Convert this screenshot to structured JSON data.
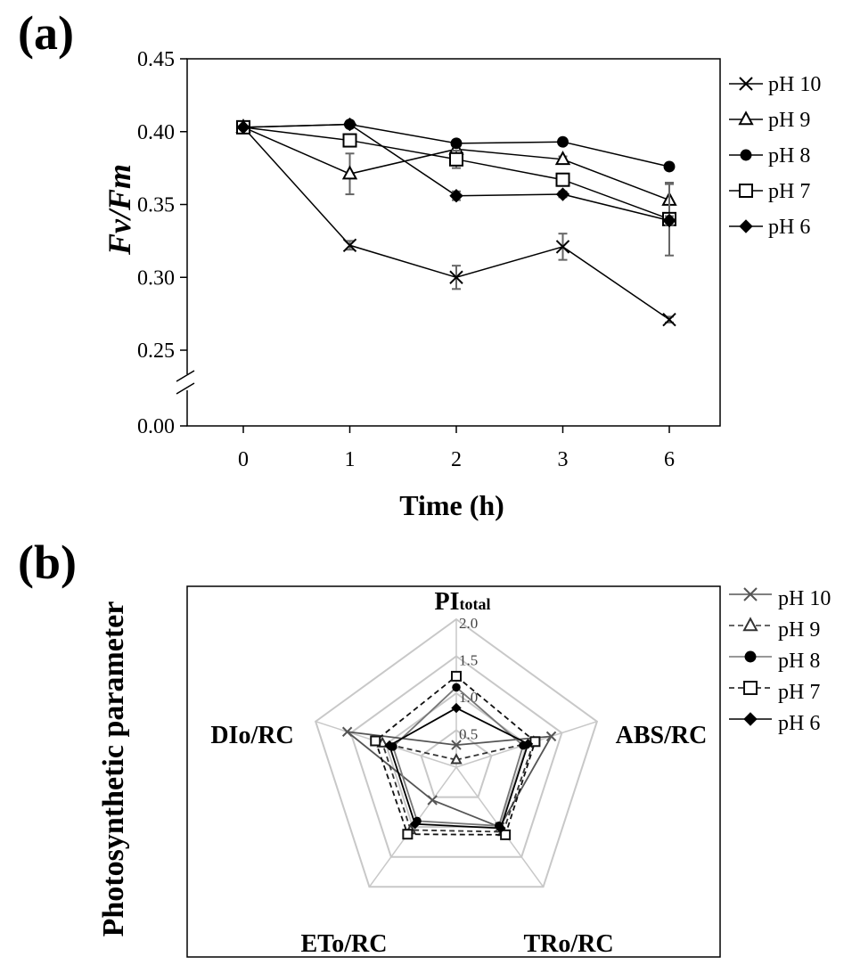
{
  "panels": {
    "a_label": "(a)",
    "b_label": "(b)"
  },
  "chart_data": [
    {
      "type": "line",
      "ylabel": "Fv/Fm",
      "xlabel": "Time (h)",
      "categories": [
        "0",
        "1",
        "2",
        "3",
        "6"
      ],
      "yticks": [
        "0.45",
        "0.40",
        "0.35",
        "0.30",
        "0.25",
        "0.00"
      ],
      "axis_break": true,
      "ylim": [
        0.25,
        0.45
      ],
      "legend_position": "right",
      "series": [
        {
          "name": "pH 10",
          "marker": "x",
          "values": [
            0.403,
            0.322,
            0.3,
            0.321,
            0.271
          ],
          "errors": [
            0.0,
            0.003,
            0.008,
            0.009,
            0.002
          ]
        },
        {
          "name": "pH 9",
          "marker": "triangle",
          "values": [
            0.403,
            0.371,
            0.388,
            0.381,
            0.353
          ],
          "errors": [
            0.0,
            0.014,
            0.004,
            0.002,
            0.011
          ]
        },
        {
          "name": "pH 8",
          "marker": "circle",
          "values": [
            0.403,
            0.405,
            0.392,
            0.393,
            0.376
          ],
          "errors": [
            0.0,
            0.002,
            0.002,
            0.002,
            0.002
          ]
        },
        {
          "name": "pH 7",
          "marker": "square",
          "values": [
            0.403,
            0.394,
            0.381,
            0.367,
            0.34
          ],
          "errors": [
            0.0,
            0.002,
            0.006,
            0.003,
            0.025
          ]
        },
        {
          "name": "pH 6",
          "marker": "diamond",
          "values": [
            0.403,
            0.405,
            0.356,
            0.357,
            0.339
          ],
          "errors": [
            0.0,
            0.001,
            0.003,
            0.002,
            0.003
          ]
        }
      ]
    },
    {
      "type": "radar",
      "ylabel": "Photosynthetic parameter",
      "axes": [
        {
          "main": "PI",
          "sub": "total"
        },
        {
          "main": "ABS/RC",
          "sub": ""
        },
        {
          "main": "TRo/RC",
          "sub": ""
        },
        {
          "main": "ETo/RC",
          "sub": ""
        },
        {
          "main": "DIo/RC",
          "sub": ""
        }
      ],
      "rlim": [
        0,
        2.0
      ],
      "ring_values": [
        0.5,
        1.0,
        1.5,
        2.0
      ],
      "ring_labels": [
        "0.5",
        "1.0",
        "1.5",
        "2.0"
      ],
      "legend_position": "right",
      "series": [
        {
          "name": "pH 10",
          "marker": "x",
          "line": "solid",
          "color": "#555555",
          "values": [
            0.3,
            1.35,
            1.0,
            0.55,
            1.55
          ]
        },
        {
          "name": "pH 9",
          "marker": "triangle",
          "line": "dashed",
          "color": "#333333",
          "values": [
            0.1,
            1.1,
            1.08,
            1.05,
            1.05
          ]
        },
        {
          "name": "pH 8",
          "marker": "circle",
          "line": "solid",
          "color": "#777777",
          "values": [
            1.08,
            0.95,
            0.98,
            0.9,
            0.9
          ]
        },
        {
          "name": "pH 7",
          "marker": "square",
          "line": "dashed",
          "color": "#111111",
          "values": [
            1.23,
            1.12,
            1.13,
            1.12,
            1.15
          ]
        },
        {
          "name": "pH 6",
          "marker": "diamond",
          "line": "solid",
          "color": "#000000",
          "values": [
            0.8,
            1.02,
            1.02,
            0.95,
            0.95
          ]
        }
      ]
    }
  ]
}
